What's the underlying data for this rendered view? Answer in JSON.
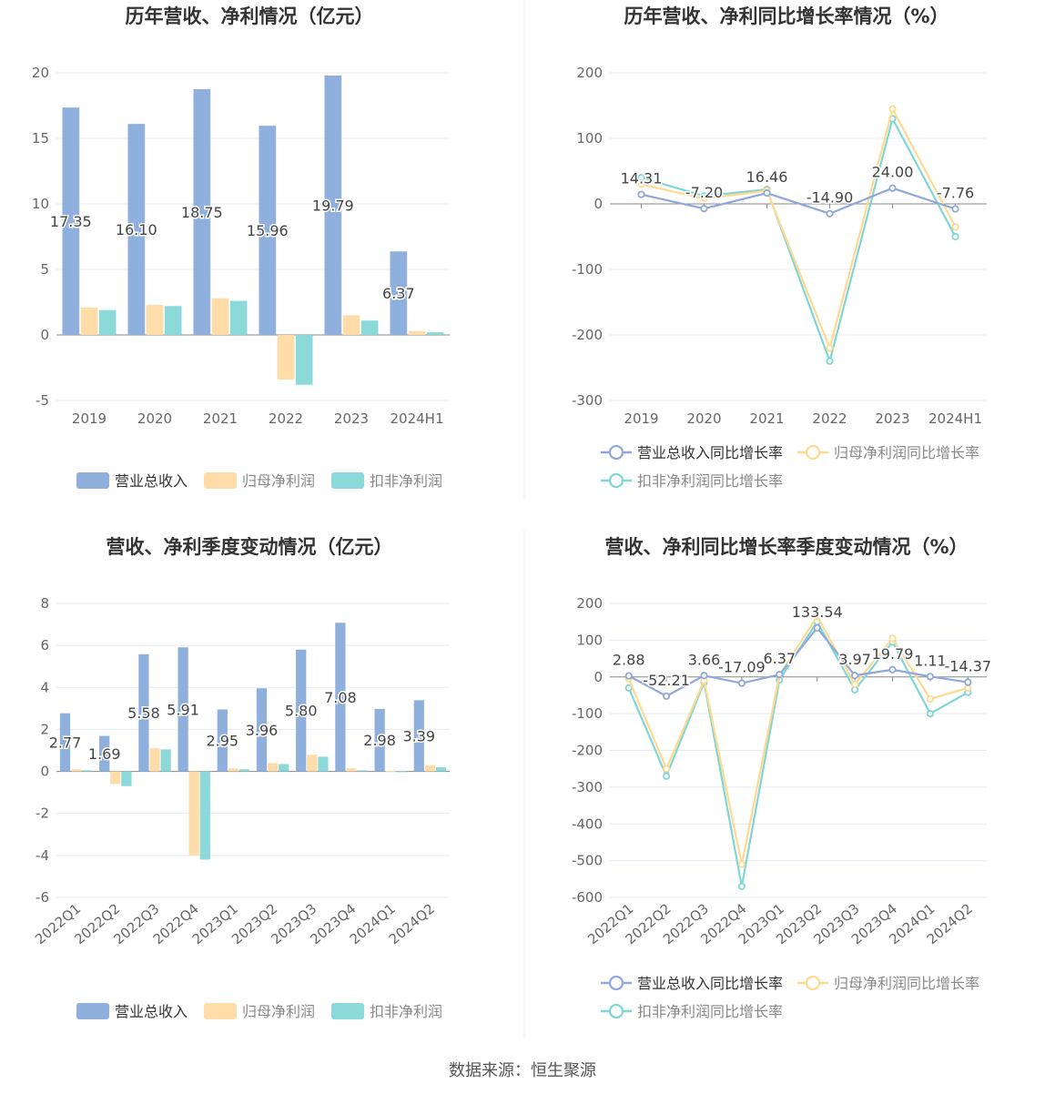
{
  "colors": {
    "revenue": "#8fafdc",
    "net_profit": "#ffdca8",
    "deducted_profit": "#8cd9d9",
    "revenue_line": "#8fa8d9",
    "net_line": "#ffd98f",
    "deducted_line": "#7fd6d6",
    "title": "#333333",
    "axis_text": "#666666",
    "grid": "#e6e9f2"
  },
  "source": "数据来源：恒生聚源",
  "chart_data": [
    {
      "id": "annual-values",
      "type": "bar",
      "title": "历年营收、净利情况（亿元）",
      "categories": [
        "2019",
        "2020",
        "2021",
        "2022",
        "2023",
        "2024H1"
      ],
      "ylim": [
        -5,
        20
      ],
      "yticks": [
        20,
        15,
        10,
        5,
        0,
        -5
      ],
      "series": [
        {
          "name": "营业总收入",
          "values": [
            17.35,
            16.1,
            18.75,
            15.96,
            19.79,
            6.37
          ],
          "labels": [
            "17.35",
            "16.10",
            "18.75",
            "15.96",
            "19.79",
            "6.37"
          ]
        },
        {
          "name": "归母净利润",
          "values": [
            2.1,
            2.3,
            2.8,
            -3.4,
            1.5,
            0.3
          ]
        },
        {
          "name": "扣非净利润",
          "values": [
            1.9,
            2.2,
            2.6,
            -3.8,
            1.1,
            0.2
          ]
        }
      ],
      "legend": [
        "营业总收入",
        "归母净利润",
        "扣非净利润"
      ]
    },
    {
      "id": "annual-growth",
      "type": "line",
      "title": "历年营收、净利同比增长率情况（%）",
      "categories": [
        "2019",
        "2020",
        "2021",
        "2022",
        "2023",
        "2024H1"
      ],
      "ylim": [
        -300,
        200
      ],
      "yticks": [
        200,
        100,
        0,
        -100,
        -200,
        -300
      ],
      "series": [
        {
          "name": "营业总收入同比增长率",
          "values": [
            14.31,
            -7.2,
            16.46,
            -14.9,
            24.0,
            -7.76
          ],
          "labels": [
            "14.31",
            "-7.20",
            "16.46",
            "-14.90",
            "24.00",
            "-7.76"
          ]
        },
        {
          "name": "归母净利润同比增长率",
          "values": [
            30,
            8,
            20,
            -220,
            145,
            -35
          ]
        },
        {
          "name": "扣非净利润同比增长率",
          "values": [
            40,
            12,
            22,
            -240,
            130,
            -50
          ]
        }
      ],
      "legend": [
        "营业总收入同比增长率",
        "归母净利润同比增长率",
        "扣非净利润同比增长率"
      ]
    },
    {
      "id": "quarterly-values",
      "type": "bar",
      "title": "营收、净利季度变动情况（亿元）",
      "categories": [
        "2022Q1",
        "2022Q2",
        "2022Q3",
        "2022Q4",
        "2023Q1",
        "2023Q2",
        "2023Q3",
        "2023Q4",
        "2024Q1",
        "2024Q2"
      ],
      "ylim": [
        -6,
        8
      ],
      "yticks": [
        8,
        6,
        4,
        2,
        0,
        -2,
        -4,
        -6
      ],
      "series": [
        {
          "name": "营业总收入",
          "values": [
            2.77,
            1.69,
            5.58,
            5.91,
            2.95,
            3.96,
            5.8,
            7.08,
            2.98,
            3.39
          ],
          "labels": [
            "2.77",
            "1.69",
            "5.58",
            "5.91",
            "2.95",
            "3.96",
            "5.80",
            "7.08",
            "2.98",
            "3.39"
          ]
        },
        {
          "name": "归母净利润",
          "values": [
            0.1,
            -0.6,
            1.1,
            -4.0,
            0.15,
            0.4,
            0.8,
            0.15,
            0.02,
            0.3
          ]
        },
        {
          "name": "扣非净利润",
          "values": [
            0.05,
            -0.7,
            1.05,
            -4.2,
            0.1,
            0.35,
            0.7,
            0.05,
            0.01,
            0.2
          ]
        }
      ],
      "legend": [
        "营业总收入",
        "归母净利润",
        "扣非净利润"
      ]
    },
    {
      "id": "quarterly-growth",
      "type": "line",
      "title": "营收、净利同比增长率季度变动情况（%）",
      "categories": [
        "2022Q1",
        "2022Q2",
        "2022Q3",
        "2022Q4",
        "2023Q1",
        "2023Q2",
        "2023Q3",
        "2023Q4",
        "2024Q1",
        "2024Q2"
      ],
      "ylim": [
        -600,
        200
      ],
      "yticks": [
        200,
        100,
        0,
        -100,
        -200,
        -300,
        -400,
        -500,
        -600
      ],
      "series": [
        {
          "name": "营业总收入同比增长率",
          "values": [
            2.88,
            -52.21,
            3.66,
            -17.09,
            6.37,
            133.54,
            3.97,
            19.79,
            1.11,
            -14.37
          ],
          "labels": [
            "2.88",
            "-52.21",
            "3.66",
            "-17.09",
            "6.37",
            "133.54",
            "3.97",
            "19.79",
            "1.11",
            "-14.37"
          ]
        },
        {
          "name": "归母净利润同比增长率",
          "values": [
            -5,
            -250,
            -10,
            -510,
            5,
            165,
            -20,
            105,
            -60,
            -30
          ]
        },
        {
          "name": "扣非净利润同比增长率",
          "values": [
            -30,
            -270,
            -15,
            -570,
            -8,
            150,
            -35,
            95,
            -100,
            -42
          ]
        }
      ],
      "legend": [
        "营业总收入同比增长率",
        "归母净利润同比增长率",
        "扣非净利润同比增长率"
      ]
    }
  ]
}
